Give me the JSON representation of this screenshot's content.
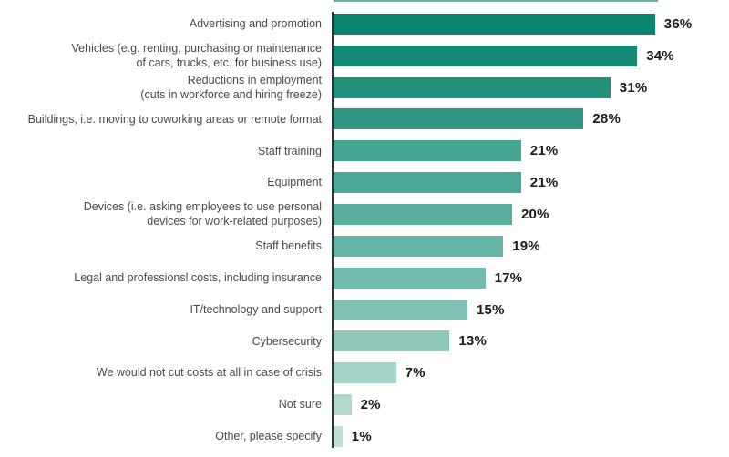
{
  "chart_data": {
    "type": "bar",
    "orientation": "horizontal",
    "title": "",
    "xlabel": "",
    "ylabel": "",
    "xlim": [
      0,
      40
    ],
    "grid": false,
    "legend": false,
    "categories": [
      "Advertising and promotion",
      "Vehicles (e.g. renting, purchasing or maintenance\nof cars, trucks, etc. for business use)",
      "Reductions in employment\n(cuts in workforce and hiring freeze)",
      "Buildings, i.e. moving to coworking areas or remote format",
      "Staff training",
      "Equipment",
      "Devices (i.e. asking employees to use personal\ndevices for work-related purposes)",
      "Staff benefits",
      "Legal and professionsl costs, including insurance",
      "IT/technology and support",
      "Cybersecurity",
      "We would not cut costs at all in case of crisis",
      "Not sure",
      "Other, please specify"
    ],
    "values": [
      36,
      34,
      31,
      28,
      21,
      21,
      20,
      19,
      17,
      15,
      13,
      7,
      2,
      1
    ],
    "value_labels": [
      "36%",
      "34%",
      "31%",
      "28%",
      "21%",
      "21%",
      "20%",
      "19%",
      "17%",
      "15%",
      "13%",
      "7%",
      "2%",
      "1%"
    ],
    "colors": [
      "#0B8470",
      "#168A76",
      "#23907C",
      "#309882",
      "#46A593",
      "#4CA896",
      "#59AE9D",
      "#66B4A5",
      "#73BBAC",
      "#81C2B4",
      "#8EC9BB",
      "#A3D3C6",
      "#B1DACD",
      "#BFE0D5"
    ],
    "label_color": "#4a4a4a",
    "value_color": "#1b1b1b",
    "axis_line_color": "#333333",
    "background_color": "#ffffff",
    "top_strip_color": "#66B4A5"
  }
}
